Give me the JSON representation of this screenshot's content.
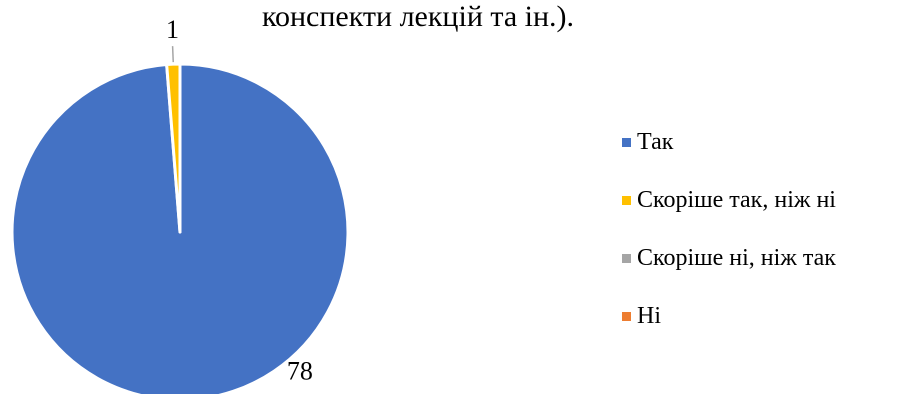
{
  "chart_data": {
    "type": "pie",
    "title": "конспекти лекцій та ін.).",
    "categories": [
      "Так",
      "Скоріше так, ніж ні",
      "Скоріше ні, ніж так",
      "Ні"
    ],
    "values": [
      78,
      1,
      0,
      0
    ],
    "colors": [
      "#4472C4",
      "#FFC000",
      "#A5A5A5",
      "#ED7D31"
    ],
    "data_labels": [
      "78",
      "1",
      "",
      ""
    ],
    "legend_position": "right"
  }
}
